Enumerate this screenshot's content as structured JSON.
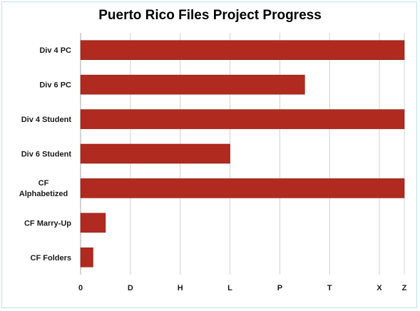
{
  "chart_data": {
    "type": "bar",
    "orientation": "horizontal",
    "title": "Puerto Rico Files Project Progress",
    "xlabel": "",
    "ylabel": "",
    "categories": [
      "Div 4 PC",
      "Div 6 PC",
      "Div 4 Student",
      "Div 6 Student",
      "CF Alphabetized",
      "CF Marry-Up",
      "CF Folders"
    ],
    "values": [
      26,
      18,
      26,
      12,
      26,
      2,
      1
    ],
    "x_ticks": [
      {
        "value": 0,
        "label": "0"
      },
      {
        "value": 4,
        "label": "D"
      },
      {
        "value": 8,
        "label": "H"
      },
      {
        "value": 12,
        "label": "L"
      },
      {
        "value": 16,
        "label": "P"
      },
      {
        "value": 20,
        "label": "T"
      },
      {
        "value": 24,
        "label": "X"
      },
      {
        "value": 26,
        "label": "Z"
      }
    ],
    "xlim": [
      0,
      26
    ],
    "grid": true,
    "legend": "none",
    "colors": {
      "bar": "#b02a1f",
      "bar_edge": "#8a1e16",
      "grid": "#d0d0d0",
      "frame": "#bfe3e3"
    }
  }
}
